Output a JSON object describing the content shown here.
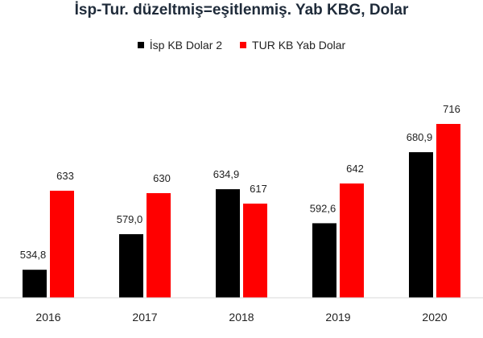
{
  "chart_data": {
    "type": "bar",
    "title": "İsp-Tur. düzeltmiş=eşitlenmiş. Yab KBG, Dolar",
    "xlabel": "",
    "ylabel": "",
    "categories": [
      "2016",
      "2017",
      "2018",
      "2019",
      "2020"
    ],
    "series": [
      {
        "name": "İsp KB Dolar 2",
        "color": "#000000",
        "values": [
          534.8,
          579.0,
          634.9,
          592.6,
          680.9
        ],
        "labels": [
          "534,8",
          "579,0",
          "634,9",
          "592,6",
          "680,9"
        ]
      },
      {
        "name": "TUR KB Yab Dolar",
        "color": "#ff0000",
        "values": [
          633,
          630,
          617,
          642,
          716
        ],
        "labels": [
          "633",
          "630",
          "617",
          "642",
          "716"
        ]
      }
    ],
    "ylim": [
      500,
      740
    ],
    "legend_position": "top",
    "grid": false
  }
}
